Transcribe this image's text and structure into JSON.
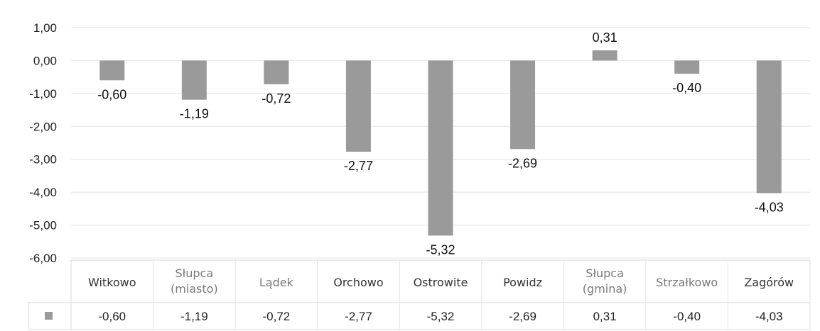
{
  "chart_data": {
    "type": "bar",
    "title": "",
    "xlabel": "",
    "ylabel": "",
    "categories": [
      "Witkowo",
      "Słupca\n(miasto)",
      "Lądek",
      "Orchowo",
      "Ostrowite",
      "Powidz",
      "Słupca\n(gmina)",
      "Strzałkowo",
      "Zagórów"
    ],
    "values": [
      -0.6,
      -1.19,
      -0.72,
      -2.77,
      -5.32,
      -2.69,
      0.31,
      -0.4,
      -4.03
    ],
    "value_labels": [
      "-0,60",
      "-1,19",
      "-0,72",
      "-2,77",
      "-5,32",
      "-2,69",
      "0,31",
      "-0,40",
      "-4,03"
    ],
    "ylim": [
      -6,
      1
    ],
    "yticks": [
      1,
      0,
      -1,
      -2,
      -3,
      -4,
      -5,
      -6
    ],
    "ytick_labels": [
      "1,00",
      "0,00",
      "-1,00",
      "-2,00",
      "-3,00",
      "-4,00",
      "-5,00",
      "-6,00"
    ],
    "grid": true,
    "bar_color": "#9a9a9a",
    "data_table": true,
    "legend_key_color": "#9a9a9a"
  }
}
